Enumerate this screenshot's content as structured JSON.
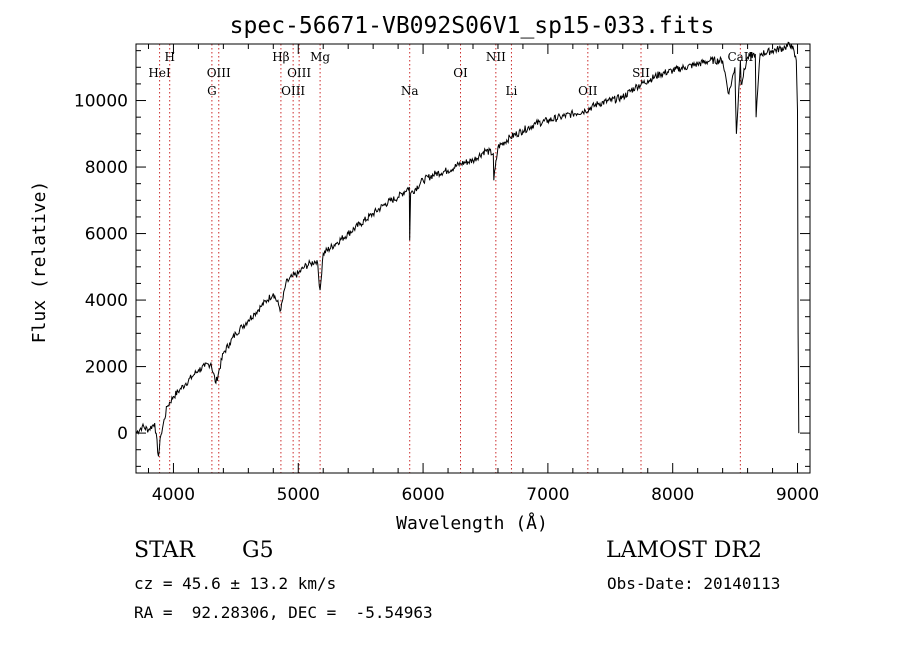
{
  "chart_data": {
    "type": "line",
    "title": "spec-56671-VB092S06V1_sp15-033.fits",
    "xlabel": "Wavelength (Å)",
    "ylabel": "Flux (relative)",
    "xlim": [
      3700,
      9100
    ],
    "ylim": [
      -1200,
      11700
    ],
    "xticks": [
      4000,
      5000,
      6000,
      7000,
      8000,
      9000
    ],
    "yticks": [
      0,
      2000,
      4000,
      6000,
      8000,
      10000
    ],
    "grid": false,
    "series": [
      {
        "x": [
          3700,
          3750,
          3800,
          3850,
          3880,
          3900,
          3950,
          4000,
          4050,
          4100,
          4150,
          4200,
          4250,
          4300,
          4340,
          4400,
          4450,
          4500,
          4550,
          4600,
          4650,
          4700,
          4750,
          4800,
          4861,
          4900,
          4950,
          5000,
          5050,
          5100,
          5150,
          5175,
          5200,
          5300,
          5400,
          5500,
          5600,
          5700,
          5800,
          5890,
          5893,
          5900,
          6000,
          6100,
          6200,
          6300,
          6400,
          6500,
          6563,
          6567,
          6600,
          6700,
          6800,
          6900,
          7000,
          7100,
          7200,
          7300,
          7400,
          7500,
          7600,
          7700,
          7800,
          7900,
          8000,
          8100,
          8200,
          8300,
          8400,
          8450,
          8498,
          8510,
          8542,
          8548,
          8600,
          8662,
          8668,
          8700,
          8800,
          8900,
          8950,
          8990,
          9000,
          9005,
          9010
        ],
        "y": [
          0,
          200,
          100,
          300,
          -700,
          -50,
          800,
          1100,
          1300,
          1500,
          1700,
          1900,
          2000,
          2100,
          1500,
          2400,
          2700,
          3000,
          3200,
          3400,
          3600,
          3800,
          4000,
          4200,
          3700,
          4500,
          4700,
          4800,
          5000,
          5100,
          5200,
          4300,
          5400,
          5700,
          6000,
          6300,
          6600,
          6900,
          7100,
          7400,
          5800,
          7200,
          7600,
          7800,
          7900,
          8100,
          8200,
          8500,
          8400,
          7600,
          8600,
          8900,
          9100,
          9300,
          9400,
          9500,
          9600,
          9700,
          9900,
          10000,
          10100,
          10400,
          10600,
          10800,
          10900,
          11000,
          11100,
          11200,
          11200,
          10200,
          11000,
          9000,
          11200,
          10500,
          11300,
          11400,
          9500,
          11400,
          11500,
          11600,
          11700,
          11200,
          9700,
          3000,
          0
        ]
      }
    ],
    "lines": [
      {
        "name": "HeI",
        "x": 3889,
        "row": 2
      },
      {
        "name": "H",
        "x": 3970,
        "row": 1
      },
      {
        "name": "G",
        "x": 4308,
        "row": 3
      },
      {
        "name": "OIII",
        "x": 4363,
        "row": 2
      },
      {
        "name": "Hβ",
        "x": 4861,
        "row": 1
      },
      {
        "name": "OIII",
        "x": 4959,
        "row": 3
      },
      {
        "name": "OIII",
        "x": 5007,
        "row": 2
      },
      {
        "name": "Mg",
        "x": 5175,
        "row": 1
      },
      {
        "name": "Na",
        "x": 5893,
        "row": 3
      },
      {
        "name": "OI",
        "x": 6300,
        "row": 2
      },
      {
        "name": "NII",
        "x": 6583,
        "row": 1
      },
      {
        "name": "Li",
        "x": 6708,
        "row": 3
      },
      {
        "name": "OII",
        "x": 7320,
        "row": 3
      },
      {
        "name": "SII",
        "x": 7746,
        "row": 2
      },
      {
        "name": "CaII",
        "x": 8542,
        "row": 1
      }
    ]
  },
  "info": {
    "object_type": "STAR",
    "subclass": "G5",
    "survey": "LAMOST DR2",
    "cz": "cz = 45.6 ± 13.2 km/s",
    "obs_date": "Obs-Date: 20140113",
    "coords": "RA =  92.28306, DEC =  -5.54963"
  },
  "colors": {
    "line_marker": "#cc2b2b",
    "spectrum": "#000000",
    "frame": "#000000"
  }
}
